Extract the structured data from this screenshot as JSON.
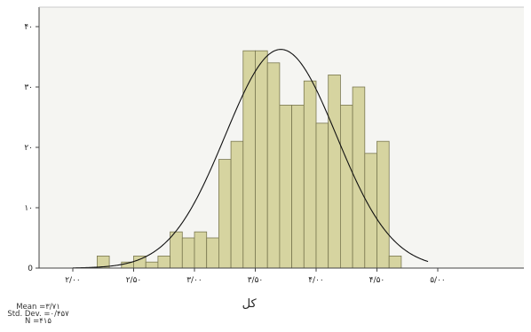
{
  "chart_data": {
    "type": "bar",
    "title": "",
    "xlabel": "کل",
    "ylabel": "",
    "xlim": [
      2.0,
      5.0
    ],
    "ylim": [
      0,
      40
    ],
    "bin_width": 0.1,
    "bins_start": 2.2,
    "counts": [
      2,
      0,
      1,
      2,
      1,
      2,
      6,
      5,
      6,
      5,
      18,
      21,
      36,
      36,
      34,
      27,
      27,
      31,
      24,
      32,
      27,
      30,
      19,
      21,
      2
    ],
    "x_ticks": [
      {
        "value": 2.0,
        "label": "۲/۰۰"
      },
      {
        "value": 2.5,
        "label": "۲/۵۰"
      },
      {
        "value": 3.0,
        "label": "۳/۰۰"
      },
      {
        "value": 3.5,
        "label": "۳/۵۰"
      },
      {
        "value": 4.0,
        "label": "۴/۰۰"
      },
      {
        "value": 4.5,
        "label": "۴/۵۰"
      },
      {
        "value": 5.0,
        "label": "۵/۰۰"
      }
    ],
    "y_ticks": [
      {
        "value": 0,
        "label": "0"
      },
      {
        "value": 10,
        "label": "۱۰"
      },
      {
        "value": 20,
        "label": "۲۰"
      },
      {
        "value": 30,
        "label": "۳۰"
      },
      {
        "value": 40,
        "label": "۴۰"
      }
    ],
    "normal_curve": {
      "mean": 3.71,
      "std_dev": 0.457,
      "n": 415
    },
    "grid": false,
    "colors": {
      "bar_fill": "#d6d4a0",
      "bar_stroke": "#7a7850",
      "plot_bg": "#f5f5f2",
      "curve": "#111111"
    }
  },
  "stats": {
    "mean": "Mean =۳/۷۱",
    "std_dev": "Std. Dev. =۰/۴۵۷",
    "n": "N =۴۱۵"
  }
}
